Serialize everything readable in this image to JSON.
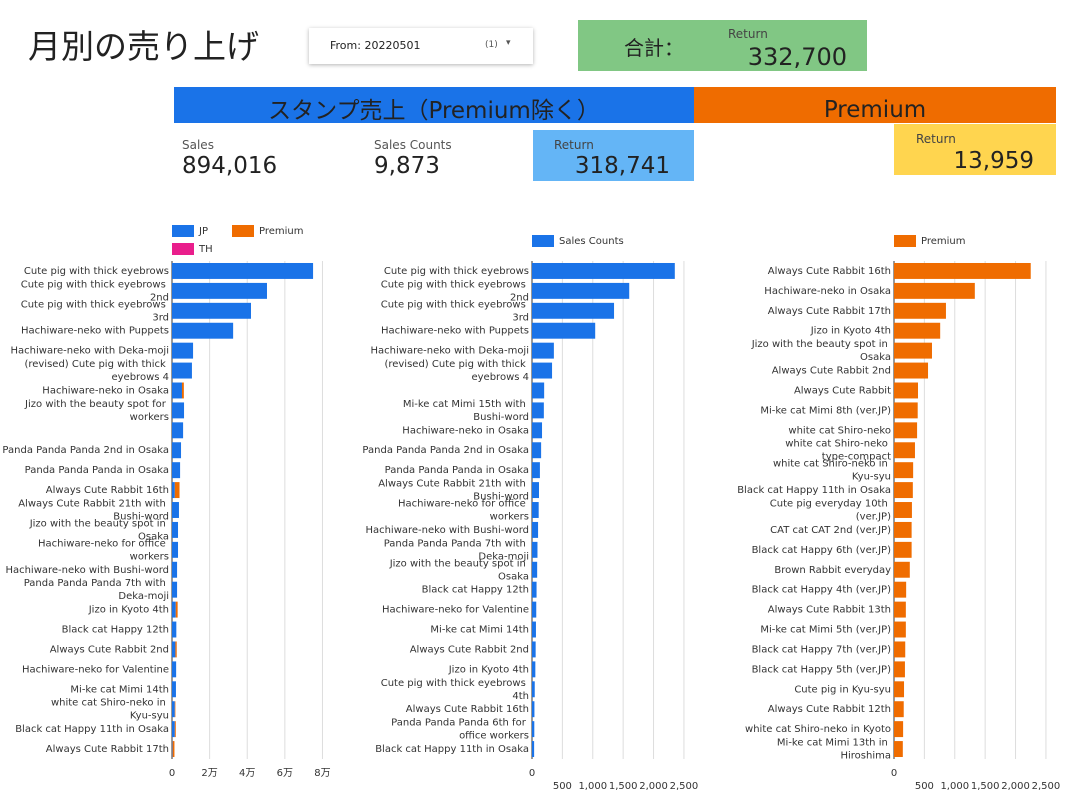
{
  "header": {
    "title": "月別の売り上げ",
    "date_filter": {
      "label": "From: 20220501",
      "count": "(1)"
    },
    "total": {
      "label": "合計：",
      "sub_label": "Return",
      "value": "332,700"
    }
  },
  "sections": {
    "stamp": {
      "title": "スタンプ売上（Premium除く）",
      "sales": {
        "label": "Sales",
        "value": "894,016"
      },
      "sales_counts": {
        "label": "Sales Counts",
        "value": "9,873"
      },
      "return": {
        "label": "Return",
        "value": "318,741"
      }
    },
    "premium": {
      "title": "Premium",
      "return": {
        "label": "Return",
        "value": "13,959"
      }
    }
  },
  "chart_data": [
    {
      "type": "hbar",
      "stacked": true,
      "categories": [
        "Cute pig with thick eyebrows",
        "Cute pig with thick eyebrows 2nd",
        "Cute pig with thick eyebrows 3rd",
        "Hachiware-neko with Puppets",
        "Hachiware-neko with Deka-moji",
        "(revised) Cute pig with thick eyebrows 4",
        "Hachiware-neko in Osaka",
        "Jizo with the beauty spot for workers",
        null,
        "Panda Panda Panda 2nd in Osaka",
        "Panda Panda Panda in Osaka",
        "Always Cute Rabbit 16th",
        "Always Cute Rabbit 21th with Bushi-word",
        "Jizo with the beauty spot in Osaka",
        "Hachiware-neko for office workers",
        "Hachiware-neko with Bushi-word",
        "Panda Panda Panda 7th with Deka-moji",
        "Jizo in Kyoto 4th",
        "Black cat Happy 12th",
        "Always Cute Rabbit 2nd",
        "Hachiware-neko for Valentine",
        "Mi-ke cat Mimi 14th",
        "white cat Shiro-neko in Kyu-syu",
        "Black cat Happy 11th in Osaka",
        "Always Cute Rabbit 17th"
      ],
      "series": [
        {
          "name": "JP",
          "color": "#1a73e8",
          "values": [
            75000,
            50500,
            42000,
            32500,
            11200,
            10600,
            5300,
            6400,
            5900,
            4800,
            4300,
            1500,
            3700,
            3200,
            3200,
            2700,
            2700,
            2000,
            2300,
            1800,
            2200,
            2100,
            1500,
            1500,
            300
          ]
        },
        {
          "name": "Premium",
          "color": "#ef6c00",
          "values": [
            0,
            0,
            0,
            0,
            0,
            0,
            1000,
            0,
            0,
            0,
            0,
            2500,
            0,
            0,
            0,
            0,
            0,
            1000,
            0,
            700,
            0,
            0,
            300,
            500,
            1000
          ]
        },
        {
          "name": "TH",
          "color": "#e91e8c",
          "values": [
            0,
            0,
            0,
            0,
            0,
            0,
            0,
            0,
            0,
            0,
            0,
            0,
            0,
            0,
            0,
            0,
            0,
            0,
            0,
            0,
            0,
            0,
            0,
            0,
            0
          ]
        }
      ],
      "xlim": [
        0,
        84000
      ],
      "xticks": [
        0,
        {
          "value": 20000,
          "label": "2万"
        },
        {
          "value": 40000,
          "label": "4万"
        },
        {
          "value": 60000,
          "label": "6万"
        },
        {
          "value": 80000,
          "label": "8万"
        }
      ],
      "grid": true
    },
    {
      "type": "hbar",
      "categories": [
        "Cute pig with thick eyebrows",
        "Cute pig with thick eyebrows 2nd",
        "Cute pig with thick eyebrows 3rd",
        "Hachiware-neko with Puppets",
        "Hachiware-neko with Deka-moji",
        "(revised) Cute pig with thick eyebrows 4",
        null,
        "Mi-ke cat Mimi 15th with Bushi-word",
        "Hachiware-neko in Osaka",
        "Panda Panda Panda 2nd in Osaka",
        "Panda Panda Panda in Osaka",
        "Always Cute Rabbit 21th with Bushi-word",
        "Hachiware-neko for office workers",
        "Hachiware-neko with Bushi-word",
        "Panda Panda Panda 7th with Deka-moji",
        "Jizo with the beauty spot in Osaka",
        "Black cat Happy 12th",
        "Hachiware-neko for Valentine",
        "Mi-ke cat Mimi 14th",
        "Always Cute Rabbit 2nd",
        "Jizo in Kyoto 4th",
        "Cute pig with thick eyebrows 4th",
        "Always Cute Rabbit 16th",
        "Panda Panda Panda 6th for office workers",
        "Black cat Happy 11th in Osaka"
      ],
      "series": [
        {
          "name": "Sales Counts",
          "color": "#1a73e8",
          "values": [
            2350,
            1600,
            1350,
            1040,
            360,
            330,
            200,
            195,
            165,
            150,
            130,
            115,
            110,
            100,
            90,
            85,
            75,
            70,
            65,
            60,
            55,
            45,
            40,
            38,
            35
          ]
        }
      ],
      "xlim": [
        0,
        2600
      ],
      "xticks": [
        0,
        500,
        {
          "value": 1000,
          "label": "1,000"
        },
        {
          "value": 1500,
          "label": "1,500"
        },
        {
          "value": 2000,
          "label": "2,000"
        },
        {
          "value": 2500,
          "label": "2,500"
        }
      ],
      "grid": true
    },
    {
      "type": "hbar",
      "categories": [
        "Always Cute Rabbit 16th",
        "Hachiware-neko in Osaka",
        "Always Cute Rabbit 17th",
        "Jizo in Kyoto 4th",
        "Jizo with the beauty spot in Osaka",
        "Always Cute Rabbit 2nd",
        "Always Cute Rabbit",
        "Mi-ke cat Mimi 8th (ver.JP)",
        "white cat Shiro-neko",
        "white cat Shiro-neko type-compact",
        "white cat Shiro-neko in Kyu-syu",
        "Black cat Happy 11th in Osaka",
        "Cute pig everyday 10th (ver.JP)",
        "CAT cat CAT 2nd (ver.JP)",
        "Black cat Happy 6th (ver.JP)",
        "Brown Rabbit everyday",
        "Black cat Happy 4th (ver.JP)",
        "Always Cute Rabbit 13th",
        "Mi-ke cat Mimi 5th (ver.JP)",
        "Black cat Happy 7th (ver.JP)",
        "Black cat Happy 5th (ver.JP)",
        "Cute pig in Kyu-syu",
        "Always Cute Rabbit 12th",
        "white cat Shiro-neko in Kyoto",
        "Mi-ke cat Mimi 13th in Hiroshima"
      ],
      "series": [
        {
          "name": "Premium",
          "color": "#ef6c00",
          "values": [
            2250,
            1330,
            855,
            760,
            625,
            560,
            395,
            390,
            380,
            345,
            315,
            310,
            295,
            290,
            290,
            260,
            200,
            195,
            195,
            185,
            180,
            165,
            160,
            150,
            145
          ]
        }
      ],
      "xlim": [
        0,
        2600
      ],
      "xticks": [
        0,
        500,
        {
          "value": 1000,
          "label": "1,000"
        },
        {
          "value": 1500,
          "label": "1,500"
        },
        {
          "value": 2000,
          "label": "2,000"
        },
        {
          "value": 2500,
          "label": "2,500"
        }
      ],
      "grid": true
    }
  ]
}
